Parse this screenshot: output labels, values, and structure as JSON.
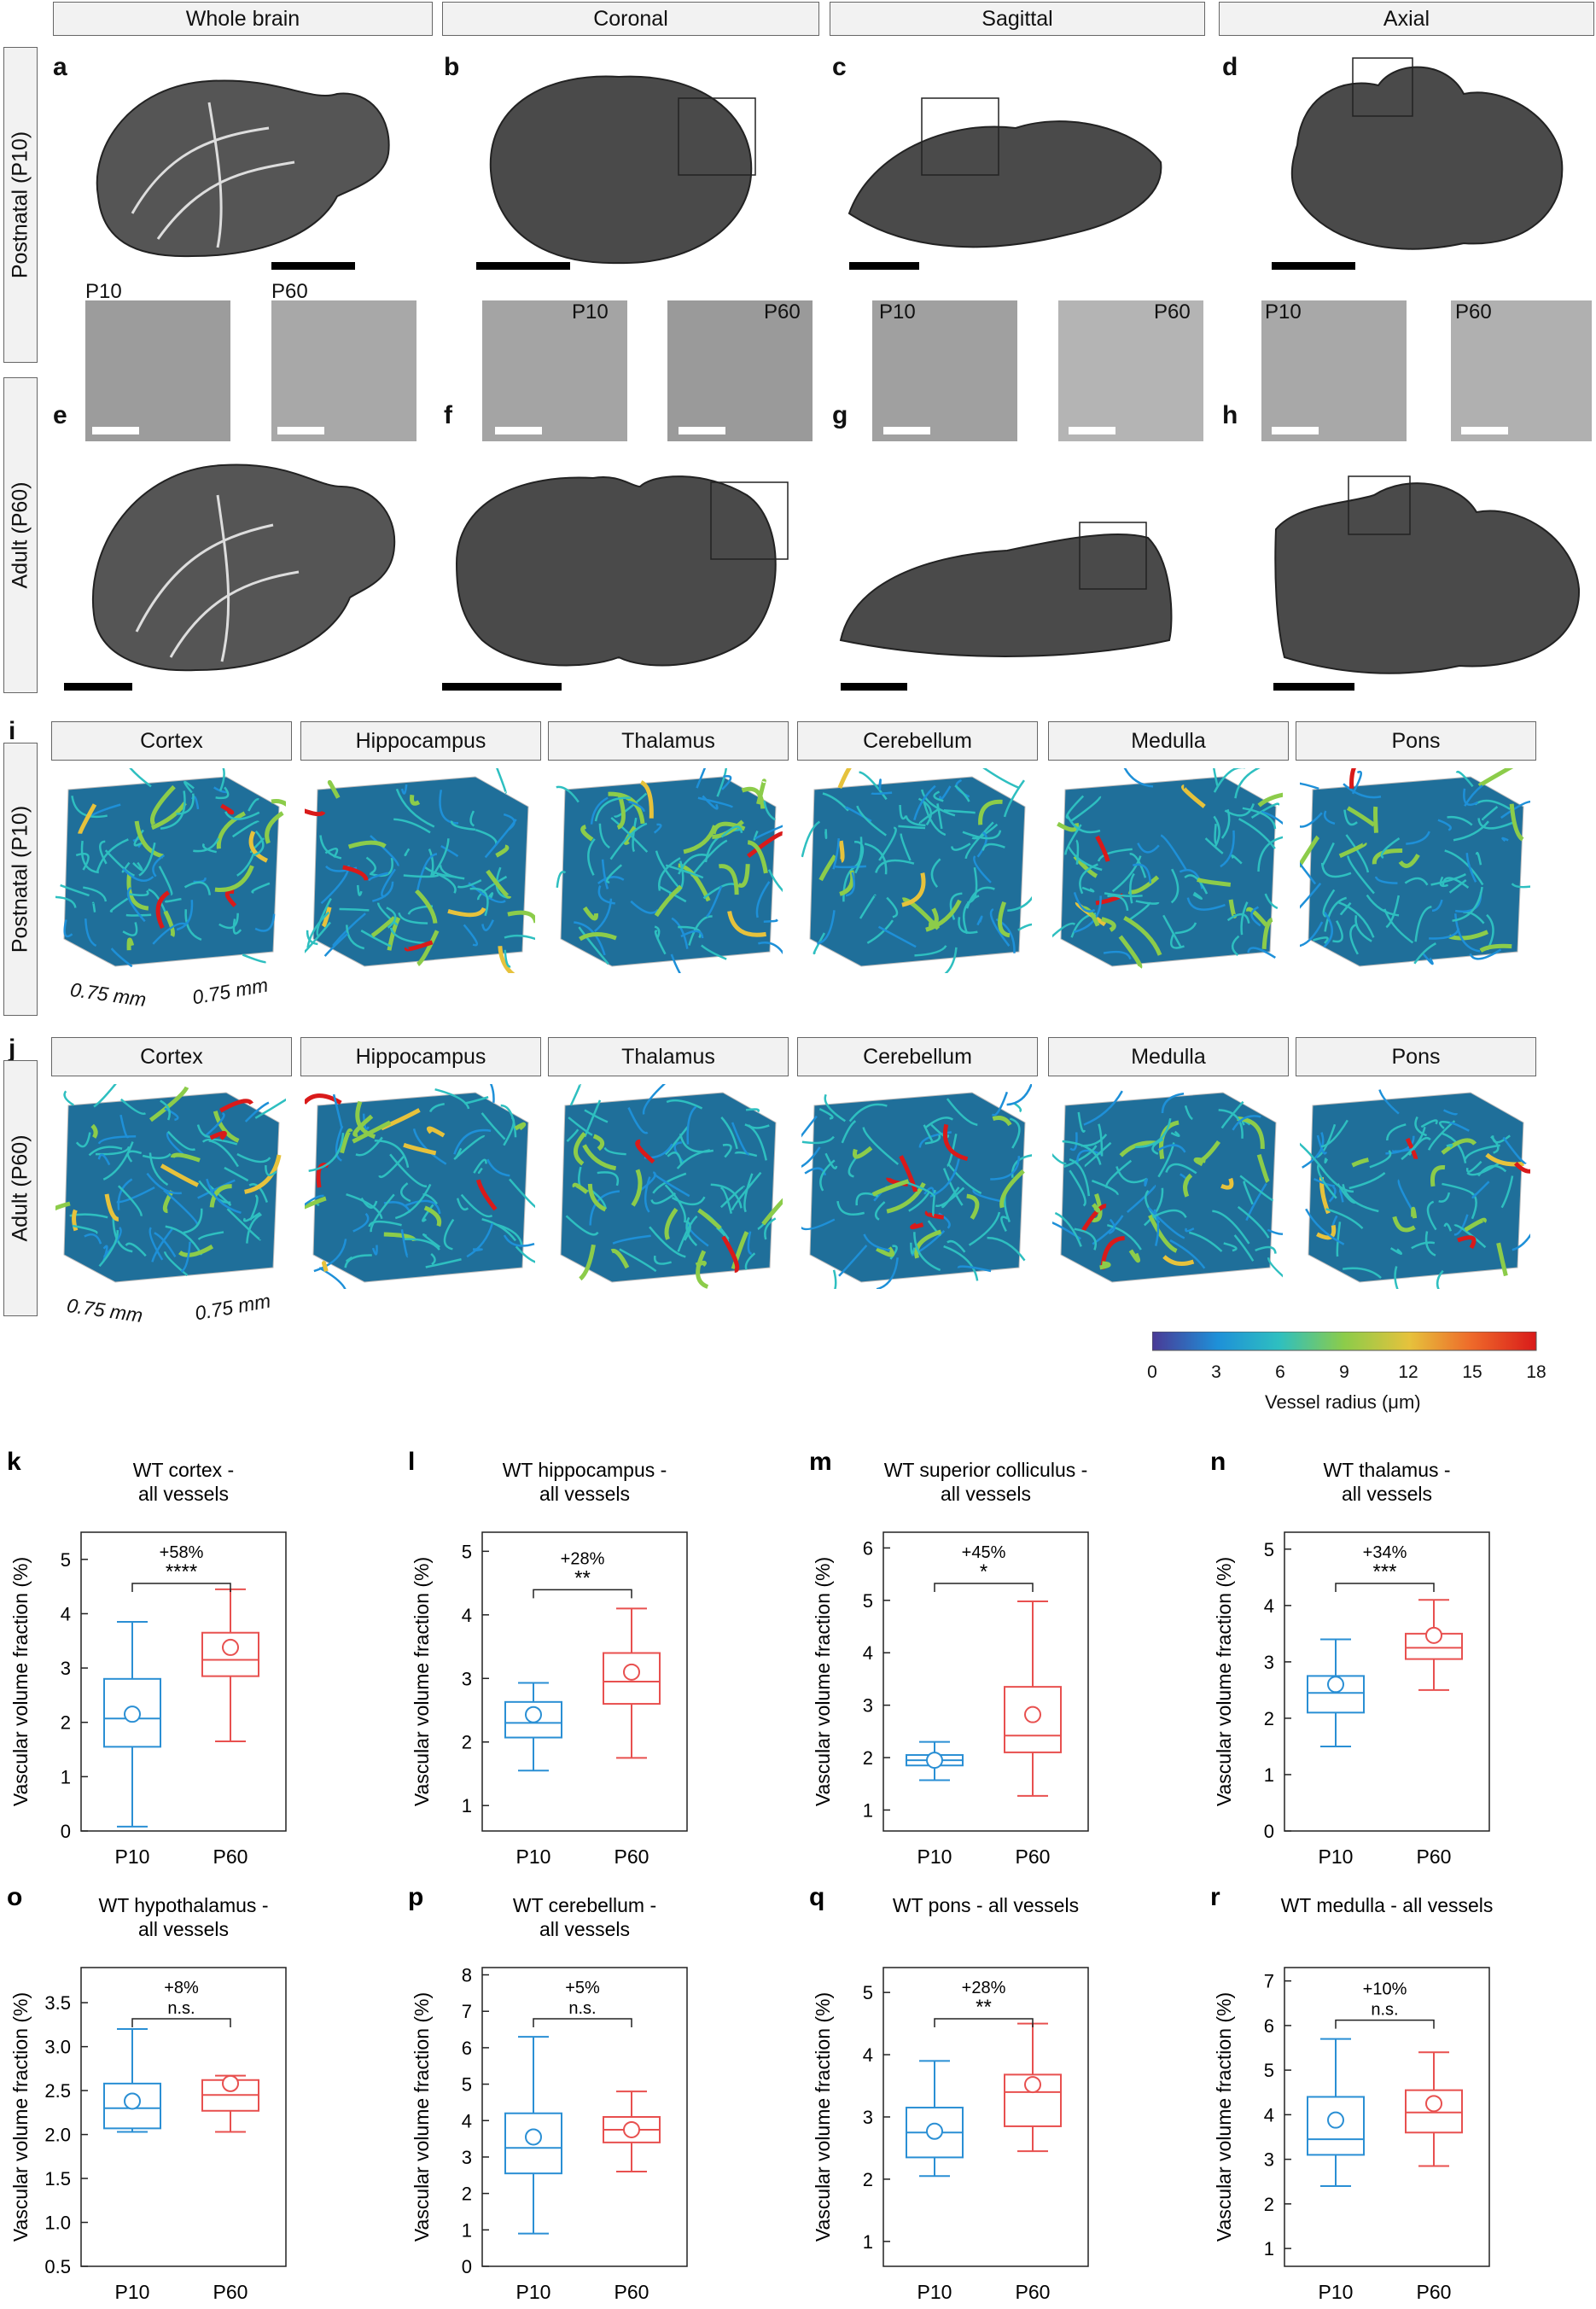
{
  "view_headers": [
    "Whole brain",
    "Coronal",
    "Sagittal",
    "Axial"
  ],
  "row_labels": {
    "postnatal": "Postnatal (P10)",
    "adult": "Adult (P60)"
  },
  "panel_letters": {
    "a": "a",
    "b": "b",
    "c": "c",
    "d": "d",
    "e": "e",
    "f": "f",
    "g": "g",
    "h": "h",
    "i": "i",
    "j": "j"
  },
  "inset_labels": {
    "p10": "P10",
    "p60": "P60"
  },
  "region_headers": [
    "Cortex",
    "Hippocampus",
    "Thalamus",
    "Cerebellum",
    "Medulla",
    "Pons"
  ],
  "cube_dims": {
    "a": "0.75 mm",
    "b": "0.75 mm"
  },
  "colorbar": {
    "label": "Vessel radius (μm)",
    "ticks": [
      "0",
      "3",
      "6",
      "9",
      "12",
      "15",
      "18"
    ],
    "colors": [
      "#4a3a96",
      "#1e90d8",
      "#2ebfc0",
      "#8ccc4a",
      "#e6c23c",
      "#ee6a2a",
      "#d91a1a"
    ]
  },
  "colors": {
    "p10": "#2a8fd4",
    "p60": "#e8504f"
  },
  "chart_data": [
    {
      "letter": "k",
      "type": "box",
      "title": [
        "WT cortex -",
        "all vessels"
      ],
      "ylabel": "Vascular volume fraction (%)",
      "categories": [
        "P10",
        "P60"
      ],
      "ylim": [
        0,
        5.5
      ],
      "yticks": [
        0,
        1,
        2,
        3,
        4,
        5
      ],
      "pct": "+58%",
      "sig": "****",
      "boxes": [
        {
          "min": 0.08,
          "q1": 1.55,
          "median": 2.07,
          "q3": 2.8,
          "max": 3.85,
          "mean": 2.15
        },
        {
          "min": 1.65,
          "q1": 2.85,
          "median": 3.15,
          "q3": 3.65,
          "max": 4.45,
          "mean": 3.38
        }
      ]
    },
    {
      "letter": "l",
      "type": "box",
      "title": [
        "WT hippocampus -",
        "all vessels"
      ],
      "ylabel": "Vascular volume fraction (%)",
      "categories": [
        "P10",
        "P60"
      ],
      "ylim": [
        0.6,
        5.3
      ],
      "yticks": [
        1,
        2,
        3,
        4,
        5
      ],
      "pct": "+28%",
      "sig": "**",
      "boxes": [
        {
          "min": 1.55,
          "q1": 2.07,
          "median": 2.3,
          "q3": 2.63,
          "max": 2.93,
          "mean": 2.43
        },
        {
          "min": 1.75,
          "q1": 2.6,
          "median": 2.95,
          "q3": 3.4,
          "max": 4.1,
          "mean": 3.1
        }
      ]
    },
    {
      "letter": "m",
      "type": "box",
      "title": [
        "WT superior colliculus -",
        "all vessels"
      ],
      "ylabel": "Vascular volume fraction (%)",
      "categories": [
        "P10",
        "P60"
      ],
      "ylim": [
        0.6,
        6.3
      ],
      "yticks": [
        1,
        2,
        3,
        4,
        5,
        6
      ],
      "pct": "+45%",
      "sig": "*",
      "boxes": [
        {
          "min": 1.57,
          "q1": 1.85,
          "median": 1.95,
          "q3": 2.05,
          "max": 2.3,
          "mean": 1.95
        },
        {
          "min": 1.27,
          "q1": 2.1,
          "median": 2.42,
          "q3": 3.35,
          "max": 4.98,
          "mean": 2.82
        }
      ]
    },
    {
      "letter": "n",
      "type": "box",
      "title": [
        "WT thalamus -",
        "all vessels"
      ],
      "ylabel": "Vascular volume fraction (%)",
      "categories": [
        "P10",
        "P60"
      ],
      "ylim": [
        0,
        5.3
      ],
      "yticks": [
        0,
        1,
        2,
        3,
        4,
        5
      ],
      "pct": "+34%",
      "sig": "***",
      "boxes": [
        {
          "min": 1.5,
          "q1": 2.1,
          "median": 2.45,
          "q3": 2.75,
          "max": 3.4,
          "mean": 2.6
        },
        {
          "min": 2.5,
          "q1": 3.05,
          "median": 3.25,
          "q3": 3.5,
          "max": 4.1,
          "mean": 3.47
        }
      ]
    },
    {
      "letter": "o",
      "type": "box",
      "title": [
        "WT hypothalamus -",
        "all vessels"
      ],
      "ylabel": "Vascular volume fraction (%)",
      "categories": [
        "P10",
        "P60"
      ],
      "ylim": [
        0.5,
        3.9
      ],
      "yticks": [
        "0.5",
        "1.0",
        "1.5",
        "2.0",
        "2.5",
        "3.0",
        "3.5"
      ],
      "pct": "+8%",
      "sig": "n.s.",
      "boxes": [
        {
          "min": 2.03,
          "q1": 2.07,
          "median": 2.3,
          "q3": 2.58,
          "max": 3.2,
          "mean": 2.38
        },
        {
          "min": 2.03,
          "q1": 2.27,
          "median": 2.45,
          "q3": 2.62,
          "max": 2.67,
          "mean": 2.58
        }
      ]
    },
    {
      "letter": "p",
      "type": "box",
      "title": [
        "WT cerebellum -",
        "all vessels"
      ],
      "ylabel": "Vascular volume fraction (%)",
      "categories": [
        "P10",
        "P60"
      ],
      "ylim": [
        0,
        8.2
      ],
      "yticks": [
        0,
        1,
        2,
        3,
        4,
        5,
        6,
        7,
        8
      ],
      "pct": "+5%",
      "sig": "n.s.",
      "boxes": [
        {
          "min": 0.9,
          "q1": 2.55,
          "median": 3.25,
          "q3": 4.2,
          "max": 6.3,
          "mean": 3.55
        },
        {
          "min": 2.6,
          "q1": 3.4,
          "median": 3.75,
          "q3": 4.1,
          "max": 4.8,
          "mean": 3.75
        }
      ]
    },
    {
      "letter": "q",
      "type": "box",
      "title": [
        "WT pons - all vessels"
      ],
      "ylabel": "Vascular volume fraction (%)",
      "categories": [
        "P10",
        "P60"
      ],
      "ylim": [
        0.6,
        5.4
      ],
      "yticks": [
        1,
        2,
        3,
        4,
        5
      ],
      "pct": "+28%",
      "sig": "**",
      "boxes": [
        {
          "min": 2.05,
          "q1": 2.35,
          "median": 2.75,
          "q3": 3.15,
          "max": 3.9,
          "mean": 2.77
        },
        {
          "min": 2.45,
          "q1": 2.85,
          "median": 3.4,
          "q3": 3.68,
          "max": 4.5,
          "mean": 3.52
        }
      ]
    },
    {
      "letter": "r",
      "type": "box",
      "title": [
        "WT medulla - all vessels"
      ],
      "ylabel": "Vascular volume fraction (%)",
      "categories": [
        "P10",
        "P60"
      ],
      "ylim": [
        0.6,
        7.3
      ],
      "yticks": [
        1,
        2,
        3,
        4,
        5,
        6,
        7
      ],
      "pct": "+10%",
      "sig": "n.s.",
      "boxes": [
        {
          "min": 2.4,
          "q1": 3.1,
          "median": 3.45,
          "q3": 4.4,
          "max": 5.7,
          "mean": 3.88
        },
        {
          "min": 2.85,
          "q1": 3.6,
          "median": 4.05,
          "q3": 4.55,
          "max": 5.4,
          "mean": 4.25
        }
      ]
    }
  ]
}
